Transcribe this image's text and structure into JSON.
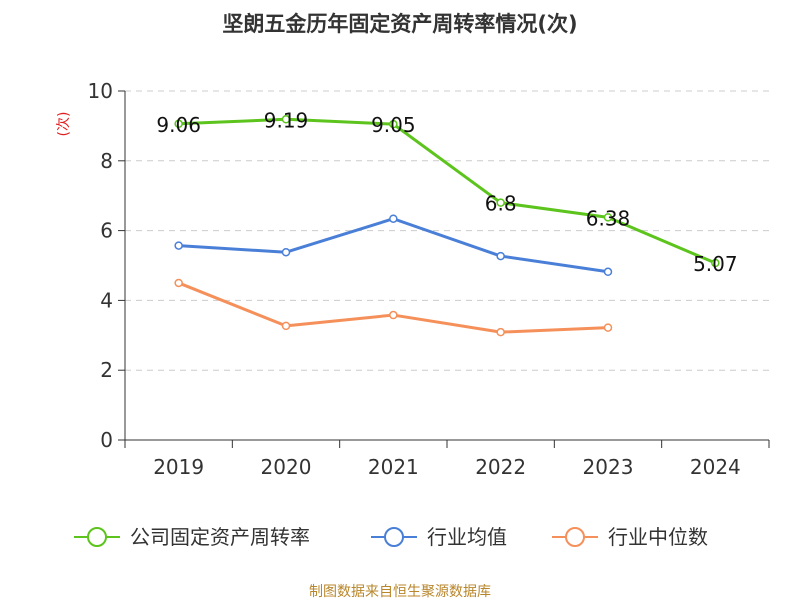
{
  "chart_data": {
    "type": "line",
    "title": "坚朗五金历年固定资产周转率情况(次)",
    "ylabel": "(次)",
    "xlabel": "",
    "categories": [
      "2019",
      "2020",
      "2021",
      "2022",
      "2023",
      "2024"
    ],
    "ylim": [
      0,
      10
    ],
    "yticks": [
      0,
      2,
      4,
      6,
      8,
      10
    ],
    "grid": true,
    "legend_position": "bottom",
    "series": [
      {
        "name": "公司固定资产周转率",
        "color": "#5cc41c",
        "values": [
          9.06,
          9.19,
          9.05,
          6.8,
          6.38,
          5.07
        ],
        "labels": [
          "9.06",
          "9.19",
          "9.05",
          "6.8",
          "6.38",
          "5.07"
        ]
      },
      {
        "name": "行业均值",
        "color": "#4a7fd8",
        "values": [
          5.57,
          5.38,
          6.34,
          5.27,
          4.82,
          null
        ]
      },
      {
        "name": "行业中位数",
        "color": "#f5905a",
        "values": [
          4.5,
          3.27,
          3.58,
          3.09,
          3.22,
          null
        ]
      }
    ],
    "source": "制图数据来自恒生聚源数据库"
  }
}
